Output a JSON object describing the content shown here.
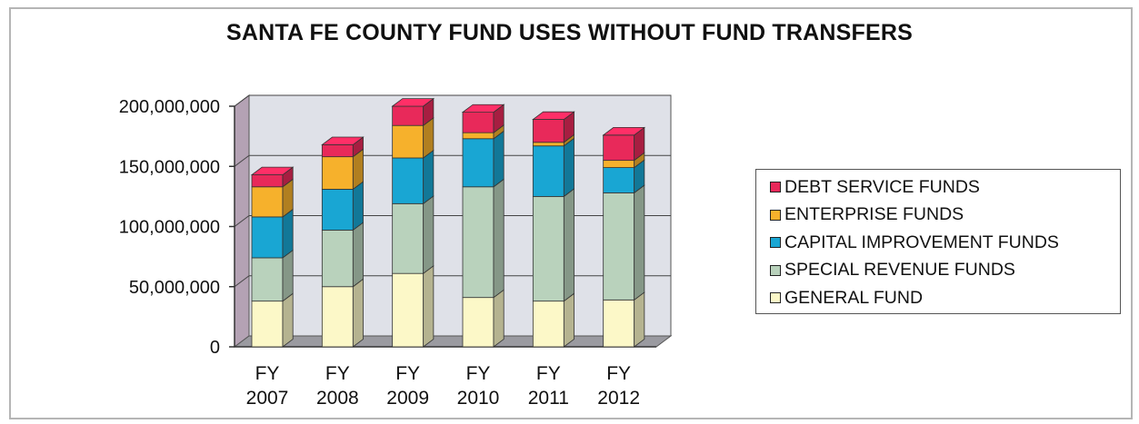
{
  "chart_data": {
    "type": "bar",
    "stacked": true,
    "three_d": true,
    "title": "SANTA FE COUNTY FUND USES WITHOUT FUND TRANSFERS",
    "xlabel": "",
    "ylabel": "",
    "ylim": [
      0,
      200000000
    ],
    "y_ticks": [
      "0",
      "50,000,000",
      "100,000,000",
      "150,000,000",
      "200,000,000"
    ],
    "y_tick_values": [
      0,
      50000000,
      100000000,
      150000000,
      200000000
    ],
    "grid": true,
    "legend_position": "right",
    "categories": [
      [
        "FY",
        "2007"
      ],
      [
        "FY",
        "2008"
      ],
      [
        "FY",
        "2009"
      ],
      [
        "FY",
        "2010"
      ],
      [
        "FY",
        "2011"
      ],
      [
        "FY",
        "2012"
      ]
    ],
    "series": [
      {
        "name": "GENERAL FUND",
        "color": "#fcf8c8",
        "values": [
          38000000,
          50000000,
          61000000,
          41000000,
          38000000,
          39000000
        ]
      },
      {
        "name": "SPECIAL REVENUE FUNDS",
        "color": "#b9d2bc",
        "values": [
          36000000,
          47000000,
          58000000,
          92000000,
          87000000,
          89000000
        ]
      },
      {
        "name": "CAPITAL IMPROVEMENT FUNDS",
        "color": "#19a6d3",
        "values": [
          34000000,
          34000000,
          38000000,
          40000000,
          42000000,
          21000000
        ]
      },
      {
        "name": "ENTERPRISE FUNDS",
        "color": "#f6b12c",
        "values": [
          25000000,
          27000000,
          27000000,
          5000000,
          3000000,
          6000000
        ]
      },
      {
        "name": "DEBT SERVICE FUNDS",
        "color": "#e8295a",
        "values": [
          10000000,
          10000000,
          16000000,
          17000000,
          19000000,
          21000000
        ]
      }
    ],
    "legend_order": [
      "DEBT SERVICE FUNDS",
      "ENTERPRISE FUNDS",
      "CAPITAL IMPROVEMENT FUNDS",
      "SPECIAL REVENUE FUNDS",
      "GENERAL FUND"
    ]
  }
}
